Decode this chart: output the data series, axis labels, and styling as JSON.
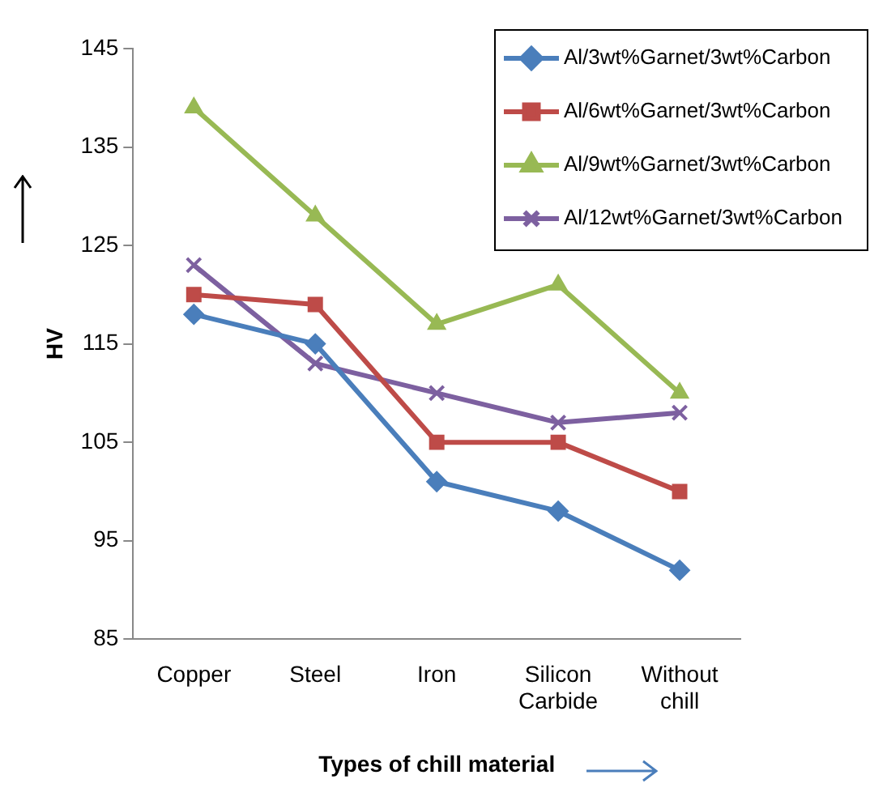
{
  "chart_data": {
    "type": "line",
    "xlabel": "Types of chill material",
    "ylabel": "HV",
    "categories": [
      "Copper",
      "Steel",
      "Iron",
      "Silicon Carbide",
      "Without chill"
    ],
    "ylim": [
      85,
      145
    ],
    "yticks": [
      85,
      95,
      105,
      115,
      125,
      135,
      145
    ],
    "grid": false,
    "legend": "top right",
    "line_style": "solid",
    "series": [
      {
        "name": "Al/3wt%Garnet/3wt%Carbon",
        "color": "#4a7ebb",
        "marker": "diamond",
        "values": [
          118,
          115,
          101,
          98,
          92
        ]
      },
      {
        "name": "Al/6wt%Garnet/3wt%Carbon",
        "color": "#be4b48",
        "marker": "square",
        "values": [
          120,
          119,
          105,
          105,
          100
        ]
      },
      {
        "name": "Al/9wt%Garnet/3wt%Carbon",
        "color": "#98b954",
        "marker": "triangle",
        "values": [
          139,
          128,
          117,
          121,
          110
        ]
      },
      {
        "name": "Al/12wt%Garnet/3wt%Carbon",
        "color": "#7d60a0",
        "marker": "cross",
        "values": [
          123,
          113,
          110,
          107,
          108
        ]
      }
    ]
  }
}
